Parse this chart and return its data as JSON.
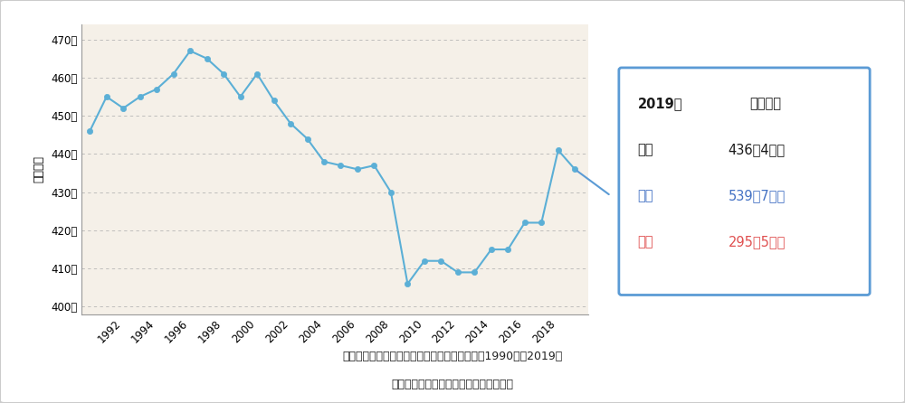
{
  "years": [
    1990,
    1991,
    1992,
    1993,
    1994,
    1995,
    1996,
    1997,
    1998,
    1999,
    2000,
    2001,
    2002,
    2003,
    2004,
    2005,
    2006,
    2007,
    2008,
    2009,
    2010,
    2011,
    2012,
    2013,
    2014,
    2015,
    2016,
    2017,
    2018,
    2019
  ],
  "values": [
    446,
    455,
    452,
    455,
    457,
    461,
    467,
    465,
    461,
    455,
    461,
    454,
    448,
    444,
    438,
    437,
    436,
    437,
    430,
    406,
    412,
    412,
    409,
    409,
    415,
    415,
    422,
    422,
    441,
    436
  ],
  "ylabel": "平均年収",
  "yticks": [
    400,
    410,
    420,
    430,
    440,
    450,
    460,
    470
  ],
  "ytick_labels": [
    "400万",
    "410万",
    "420万",
    "430万",
    "440万",
    "450万",
    "460万",
    "470万"
  ],
  "xticks": [
    1992,
    1994,
    1996,
    1998,
    2000,
    2002,
    2004,
    2006,
    2008,
    2010,
    2012,
    2014,
    2016,
    2018
  ],
  "line_color": "#5bafd6",
  "marker_color": "#5bafd6",
  "plot_bg_color": "#f5f0e8",
  "outer_bg_color": "#ffffff",
  "grid_color": "#b0b0b0",
  "annotation_border_color": "#5b9bd5",
  "annotation_male_color": "#4472c4",
  "annotation_female_color": "#e05050",
  "annotation_text_color": "#1a1a1a",
  "source_text1": "（出典）日本の数字「民間給与実態統計調査」1990年～2019年",
  "source_text2": "資料：国税庁「民間給与実態統計調査」",
  "ylim_min": 398,
  "ylim_max": 474,
  "figwidth": 10.0,
  "figheight": 4.46
}
